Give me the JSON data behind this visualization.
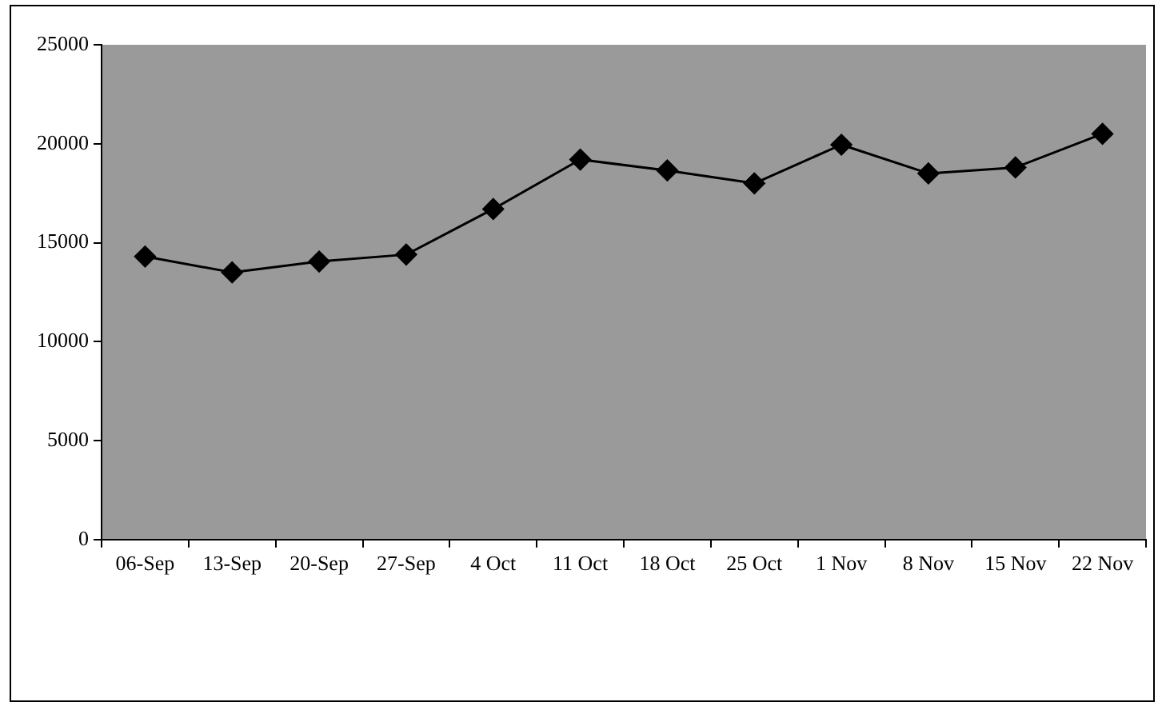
{
  "chart_data": {
    "type": "line",
    "categories": [
      "06-Sep",
      "13-Sep",
      "20-Sep",
      "27-Sep",
      "4 Oct",
      "11 Oct",
      "18 Oct",
      "25 Oct",
      "1 Nov",
      "8 Nov",
      "15 Nov",
      "22 Nov"
    ],
    "series": [
      {
        "color": "#000000",
        "values": [
          14300,
          13500,
          14050,
          14400,
          16700,
          19200,
          18650,
          18000,
          19950,
          18500,
          18800,
          20500
        ]
      }
    ],
    "ylim": [
      0,
      25000
    ],
    "yticks": [
      0,
      5000,
      10000,
      15000,
      20000,
      25000
    ],
    "marker": "diamond",
    "line_style": "solid",
    "grid": false,
    "legend": false
  }
}
